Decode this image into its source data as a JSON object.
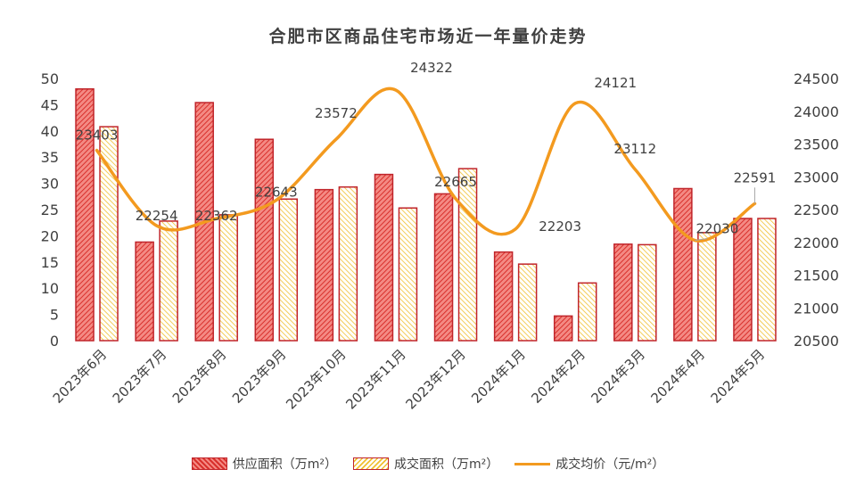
{
  "chart_data": {
    "type": "bar",
    "title": "合肥市区商品住宅市场近一年量价走势",
    "categories": [
      "2023年6月",
      "2023年7月",
      "2023年8月",
      "2023年9月",
      "2023年10月",
      "2023年11月",
      "2023年12月",
      "2024年1月",
      "2024年2月",
      "2024年3月",
      "2024年4月",
      "2024年5月"
    ],
    "series": [
      {
        "name": "供应面积（万m²）",
        "type": "bar",
        "axis": "left",
        "color": "#e05050",
        "values": [
          48.0,
          18.8,
          45.4,
          38.4,
          28.8,
          31.7,
          28.0,
          16.9,
          4.7,
          18.4,
          29.0,
          23.3
        ]
      },
      {
        "name": "成交面积（万m²）",
        "type": "bar",
        "axis": "left",
        "color": "#f0c030",
        "values": [
          40.8,
          22.8,
          24.0,
          27.0,
          29.3,
          25.3,
          32.8,
          14.6,
          11.0,
          18.3,
          20.6,
          23.3
        ]
      },
      {
        "name": "成交均价（元/m²）",
        "type": "line",
        "axis": "right",
        "color": "#f39a1f",
        "values": [
          23403,
          22254,
          22362,
          22643,
          23572,
          24322,
          22665,
          22203,
          24121,
          23112,
          22030,
          22591
        ]
      }
    ],
    "y_left": {
      "min": 0,
      "max": 50,
      "step": 5,
      "ticks": [
        "0",
        "5",
        "10",
        "15",
        "20",
        "25",
        "30",
        "35",
        "40",
        "45",
        "50"
      ]
    },
    "y_right": {
      "min": 20500,
      "max": 24500,
      "step": 500,
      "ticks": [
        "20500",
        "21000",
        "21500",
        "22000",
        "22500",
        "23000",
        "23500",
        "24000",
        "24500"
      ]
    },
    "data_labels": [
      "23403",
      "22254",
      "22362",
      "22643",
      "23572",
      "24322",
      "22665",
      "22203",
      "24121",
      "23112",
      "22030",
      "22591"
    ],
    "legend_position": "bottom",
    "grid": false
  },
  "legend": {
    "supply_label": "供应面积（万m²）",
    "deal_label": "成交面积（万m²）",
    "price_label": "成交均价（元/m²）"
  },
  "colors": {
    "supply_fill": "#e05050",
    "bar_stroke": "#c0242a",
    "deal_stripe": "#f0c030",
    "line": "#f39a1f",
    "axis_text": "#404040"
  }
}
